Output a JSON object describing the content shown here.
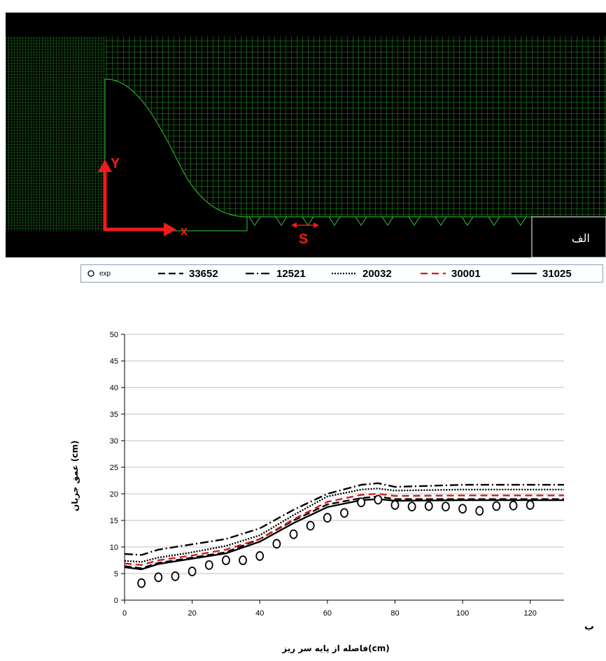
{
  "mesh_panel": {
    "axis_y_label": "Y",
    "axis_x_label": "x",
    "spacing_label": "S",
    "panel_label": "الف",
    "colors": {
      "background": "#000000",
      "mesh": "#2ecc2e",
      "annotation": "#ee1c1c"
    }
  },
  "legend": {
    "entries": [
      {
        "label": "exp",
        "style": "circle"
      },
      {
        "label": "33652",
        "style": "long-dash"
      },
      {
        "label": "12521",
        "style": "dash-dot"
      },
      {
        "label": "20032",
        "style": "dotted"
      },
      {
        "label": "30001",
        "style": "red-dash"
      },
      {
        "label": "31025",
        "style": "solid"
      }
    ]
  },
  "panel_b_label": "ب",
  "chart_data": {
    "type": "line",
    "xlabel": "فاصله از پایه سر ریز(cm)",
    "ylabel": "عمق جریان (cm)",
    "xlim": [
      0,
      130
    ],
    "ylim": [
      0,
      50
    ],
    "xticks": [
      0,
      20,
      40,
      60,
      80,
      100,
      120
    ],
    "yticks": [
      0,
      5,
      10,
      15,
      20,
      25,
      30,
      35,
      40,
      45,
      50
    ],
    "grid": "horizontal",
    "series": [
      {
        "name": "exp",
        "kind": "scatter",
        "color": "#000000",
        "x": [
          5,
          10,
          15,
          20,
          25,
          30,
          35,
          40,
          45,
          50,
          55,
          60,
          65,
          70,
          75,
          80,
          85,
          90,
          95,
          100,
          105,
          110,
          115,
          120
        ],
        "y": [
          3.2,
          4.3,
          4.5,
          5.4,
          6.6,
          7.5,
          7.5,
          8.3,
          10.6,
          12.4,
          14.0,
          15.5,
          16.4,
          18.4,
          18.9,
          17.9,
          17.6,
          17.7,
          17.6,
          17.2,
          16.8,
          17.7,
          17.8,
          17.9
        ]
      },
      {
        "name": "33652",
        "kind": "line",
        "color": "#000000",
        "dash": "10,5",
        "x": [
          0,
          5,
          10,
          20,
          30,
          40,
          50,
          60,
          70,
          75,
          80,
          100,
          130
        ],
        "y": [
          6.4,
          6.0,
          7.0,
          8.0,
          9.0,
          11.5,
          15.0,
          18.0,
          19.2,
          19.5,
          19.0,
          19.0,
          19.0
        ]
      },
      {
        "name": "12521",
        "kind": "line",
        "color": "#000000",
        "dash": "12,4,2,4",
        "x": [
          0,
          5,
          10,
          20,
          30,
          40,
          50,
          60,
          70,
          75,
          80,
          100,
          130
        ],
        "y": [
          8.7,
          8.5,
          9.5,
          10.5,
          11.5,
          13.5,
          17.0,
          20.0,
          21.7,
          22.0,
          21.3,
          21.7,
          21.7
        ]
      },
      {
        "name": "20032",
        "kind": "line",
        "color": "#000000",
        "dash": "2,2",
        "x": [
          0,
          5,
          10,
          20,
          30,
          40,
          50,
          60,
          70,
          75,
          80,
          100,
          130
        ],
        "y": [
          7.4,
          7.2,
          8.0,
          9.0,
          10.2,
          12.2,
          16.0,
          19.5,
          20.8,
          21.0,
          20.6,
          20.8,
          20.8
        ]
      },
      {
        "name": "30001",
        "kind": "line",
        "color": "#cc1f1f",
        "dash": "10,6",
        "x": [
          0,
          5,
          10,
          20,
          30,
          40,
          50,
          60,
          70,
          75,
          80,
          100,
          130
        ],
        "y": [
          6.9,
          6.6,
          7.5,
          8.4,
          9.5,
          11.5,
          15.2,
          18.5,
          19.8,
          20.0,
          19.6,
          19.7,
          19.7
        ]
      },
      {
        "name": "31025",
        "kind": "line",
        "color": "#000000",
        "dash": "",
        "x": [
          0,
          5,
          10,
          20,
          30,
          40,
          50,
          60,
          70,
          75,
          80,
          100,
          130
        ],
        "y": [
          6.2,
          5.8,
          6.8,
          7.8,
          8.8,
          11.0,
          14.5,
          17.5,
          18.8,
          19.0,
          18.7,
          18.8,
          18.8
        ]
      }
    ]
  }
}
